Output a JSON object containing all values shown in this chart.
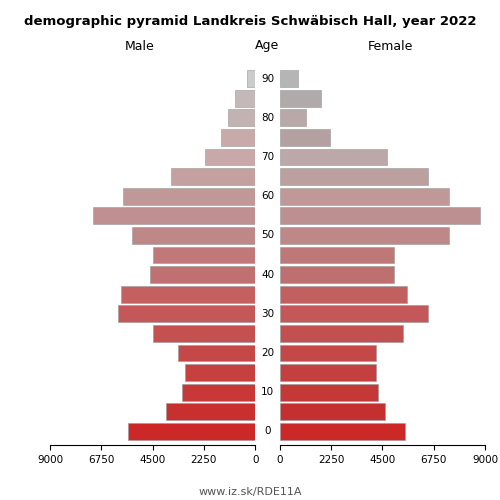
{
  "title": "demographic pyramid Landkreis Schwäbisch Hall, year 2022",
  "watermark": "www.iz.sk/RDE11A",
  "age_groups": [
    90,
    85,
    80,
    75,
    70,
    65,
    60,
    55,
    50,
    45,
    40,
    35,
    30,
    25,
    20,
    15,
    10,
    5,
    0
  ],
  "male_vals": [
    350,
    900,
    1200,
    1500,
    2200,
    3700,
    5800,
    7100,
    5400,
    4500,
    4600,
    5900,
    6000,
    4500,
    3400,
    3100,
    3200,
    3900,
    5600
  ],
  "female_vals": [
    800,
    1800,
    1150,
    2200,
    4700,
    6500,
    7400,
    8800,
    7400,
    5000,
    5000,
    5600,
    6500,
    5400,
    4200,
    4200,
    4300,
    4600,
    5500
  ],
  "male_colors": [
    "#cbcbcb",
    "#c5b8b8",
    "#c2b2b2",
    "#c8aaaa",
    "#c8a8a8",
    "#c4a0a0",
    "#c09898",
    "#c09090",
    "#be8888",
    "#c07878",
    "#c07070",
    "#c46060",
    "#c45858",
    "#c45050",
    "#c44848",
    "#c64040",
    "#c83838",
    "#c83030",
    "#cc2828"
  ],
  "female_colors": [
    "#b5b5b5",
    "#b0aaaa",
    "#b8a8a8",
    "#b4a0a0",
    "#bca8a8",
    "#bca0a0",
    "#c09898",
    "#bc9090",
    "#be8888",
    "#be7878",
    "#be7070",
    "#c26060",
    "#c45858",
    "#c25050",
    "#c44848",
    "#c44040",
    "#c43838",
    "#c43030",
    "#cc2828"
  ],
  "bar_height": 4.3,
  "xlim": 9000,
  "xticks": [
    0,
    2250,
    4500,
    6750,
    9000
  ],
  "xlabel_left": "Male",
  "xlabel_center": "Age",
  "xlabel_right": "Female",
  "age_tick_display": [
    0,
    10,
    20,
    30,
    40,
    50,
    60,
    70,
    80,
    90
  ]
}
